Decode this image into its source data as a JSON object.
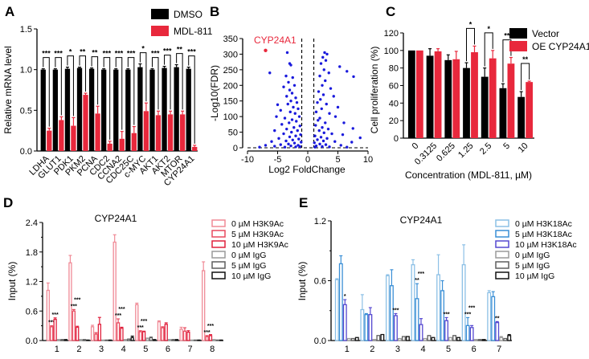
{
  "chart_data": [
    {
      "panel": "A",
      "type": "bar",
      "ylabel": "Relative mRNA level",
      "ylim": [
        0,
        1.5
      ],
      "yticks": [
        0.0,
        0.5,
        1.0,
        1.5
      ],
      "categories": [
        "LDHA",
        "GLUT1",
        "PDK1",
        "PKM2",
        "PCNA",
        "CDC2",
        "CCNA2",
        "CDC25C",
        "c-MYC",
        "AKT1",
        "AKT2",
        "MTOR",
        "CYP24A1"
      ],
      "series": [
        {
          "name": "DMSO",
          "color": "#000000",
          "values": [
            1.0,
            1.0,
            1.01,
            1.02,
            1.01,
            1.0,
            1.0,
            1.0,
            1.03,
            1.0,
            1.02,
            1.03,
            1.01
          ],
          "errors": [
            0.01,
            0.01,
            0.02,
            0.01,
            0.01,
            0.01,
            0.01,
            0.01,
            0.04,
            0.01,
            0.02,
            0.03,
            0.02
          ]
        },
        {
          "name": "MDL-811",
          "color": "#e8283c",
          "values": [
            0.25,
            0.38,
            0.31,
            0.69,
            0.46,
            0.09,
            0.15,
            0.22,
            0.49,
            0.44,
            0.45,
            0.45,
            0.05
          ],
          "errors": [
            0.03,
            0.04,
            0.1,
            0.02,
            0.09,
            0.03,
            0.09,
            0.08,
            0.1,
            0.05,
            0.04,
            0.04,
            0.02
          ]
        }
      ],
      "significance": [
        "***",
        "***",
        "*",
        "**",
        "**",
        "***",
        "***",
        "***",
        "*",
        "***",
        "***",
        "**",
        "***"
      ]
    },
    {
      "panel": "B",
      "type": "scatter",
      "xlabel": "Log2 FoldChange",
      "ylabel": "-Log10(FDR)",
      "xlim": [
        -10,
        10
      ],
      "ylim": [
        0,
        350
      ],
      "xticks": [
        -10,
        -5,
        0,
        5,
        10
      ],
      "yticks": [
        0,
        50,
        100,
        150,
        200,
        250,
        300,
        350
      ],
      "thresholds_x": [
        -1,
        1
      ],
      "color": "#1a1adc",
      "highlight": {
        "label": "CYP24A1",
        "x": -7.0,
        "y": 312,
        "color": "#e8283c"
      },
      "points": [
        [
          -6.3,
          240
        ],
        [
          -3.4,
          305
        ],
        [
          -3.0,
          270
        ],
        [
          -2.8,
          265
        ],
        [
          -3.6,
          230
        ],
        [
          -2.5,
          225
        ],
        [
          -3.2,
          210
        ],
        [
          -2.2,
          200
        ],
        [
          -4.0,
          195
        ],
        [
          -3.0,
          185
        ],
        [
          -2.6,
          175
        ],
        [
          -3.5,
          165
        ],
        [
          -2.0,
          160
        ],
        [
          -2.8,
          150
        ],
        [
          -1.8,
          145
        ],
        [
          -3.3,
          140
        ],
        [
          -5.0,
          138
        ],
        [
          -2.4,
          130
        ],
        [
          -1.6,
          125
        ],
        [
          -4.5,
          120
        ],
        [
          -2.9,
          115
        ],
        [
          -2.1,
          110
        ],
        [
          -1.4,
          100
        ],
        [
          -3.8,
          95
        ],
        [
          -5.2,
          100
        ],
        [
          -2.6,
          90
        ],
        [
          -1.9,
          85
        ],
        [
          -3.1,
          80
        ],
        [
          -4.3,
          75
        ],
        [
          -1.3,
          70
        ],
        [
          -2.3,
          65
        ],
        [
          -3.5,
          60
        ],
        [
          -5.5,
          55
        ],
        [
          -1.7,
          55
        ],
        [
          -2.7,
          50
        ],
        [
          -4.0,
          45
        ],
        [
          -1.2,
          42
        ],
        [
          -2.0,
          38
        ],
        [
          -3.0,
          35
        ],
        [
          -4.8,
          30
        ],
        [
          -1.5,
          28
        ],
        [
          -2.5,
          25
        ],
        [
          -3.6,
          22
        ],
        [
          -6.0,
          20
        ],
        [
          -1.1,
          18
        ],
        [
          -2.2,
          15
        ],
        [
          -3.2,
          12
        ],
        [
          -4.5,
          10
        ],
        [
          -7.0,
          8
        ],
        [
          -1.6,
          8
        ],
        [
          -2.8,
          6
        ],
        [
          -5.5,
          5
        ],
        [
          -1.3,
          4
        ],
        [
          -2.0,
          3
        ],
        [
          -3.8,
          2
        ],
        [
          -8.0,
          2
        ],
        [
          2.8,
          305
        ],
        [
          3.2,
          300
        ],
        [
          2.5,
          290
        ],
        [
          3.0,
          280
        ],
        [
          2.2,
          270
        ],
        [
          5.3,
          260
        ],
        [
          6.5,
          245
        ],
        [
          7.6,
          228
        ],
        [
          2.7,
          250
        ],
        [
          3.5,
          240
        ],
        [
          2.0,
          230
        ],
        [
          2.9,
          215
        ],
        [
          2.4,
          200
        ],
        [
          3.8,
          190
        ],
        [
          1.8,
          180
        ],
        [
          2.6,
          170
        ],
        [
          4.3,
          165
        ],
        [
          2.1,
          155
        ],
        [
          1.6,
          145
        ],
        [
          3.1,
          140
        ],
        [
          5.0,
          130
        ],
        [
          2.3,
          125
        ],
        [
          1.4,
          115
        ],
        [
          3.6,
          110
        ],
        [
          4.6,
          100
        ],
        [
          2.0,
          95
        ],
        [
          1.7,
          88
        ],
        [
          2.9,
          80
        ],
        [
          6.0,
          80
        ],
        [
          1.3,
          72
        ],
        [
          2.4,
          65
        ],
        [
          3.4,
          60
        ],
        [
          7.5,
          62
        ],
        [
          1.9,
          55
        ],
        [
          2.7,
          48
        ],
        [
          4.0,
          45
        ],
        [
          5.8,
          42
        ],
        [
          1.2,
          38
        ],
        [
          2.2,
          34
        ],
        [
          3.2,
          30
        ],
        [
          8.7,
          32
        ],
        [
          1.6,
          26
        ],
        [
          2.6,
          22
        ],
        [
          4.5,
          20
        ],
        [
          7.3,
          18
        ],
        [
          1.1,
          16
        ],
        [
          2.0,
          12
        ],
        [
          3.0,
          10
        ],
        [
          5.5,
          8
        ],
        [
          1.4,
          6
        ],
        [
          2.4,
          4
        ],
        [
          3.6,
          3
        ],
        [
          6.5,
          2
        ],
        [
          1.2,
          2
        ]
      ]
    },
    {
      "panel": "C",
      "type": "bar",
      "xlabel": "Concentration (MDL-811, µM)",
      "ylabel": "Cell proliferation (%)",
      "ylim": [
        0,
        120
      ],
      "yticks": [
        0,
        20,
        40,
        60,
        80,
        100,
        120
      ],
      "categories": [
        "0",
        "0.3125",
        "0.625",
        "1.25",
        "2.5",
        "5",
        "10"
      ],
      "series": [
        {
          "name": "Vector",
          "color": "#000000",
          "values": [
            100,
            94,
            89,
            80,
            70,
            57,
            47
          ],
          "errors": [
            0,
            8,
            6,
            6,
            10,
            5,
            6
          ]
        },
        {
          "name": "OE CYP24A1",
          "color": "#e8283c",
          "values": [
            100,
            99,
            90,
            98,
            91,
            85,
            64
          ],
          "errors": [
            0,
            3,
            9,
            7,
            9,
            7,
            1
          ]
        }
      ],
      "significance": [
        "",
        "",
        "",
        "*",
        "*",
        "**",
        "**"
      ]
    },
    {
      "panel": "D",
      "type": "bar",
      "title": "CYP24A1",
      "ylabel": "Input (%)",
      "ylim": [
        0,
        2.4
      ],
      "yticks": [
        0.0,
        0.6,
        1.2,
        1.8,
        2.4
      ],
      "categories": [
        "1",
        "2",
        "3",
        "4",
        "5",
        "6",
        "7",
        "8"
      ],
      "series": [
        {
          "name": "0 µM H3K9Ac",
          "color": "#f08a96",
          "values": [
            1.02,
            1.58,
            0.28,
            2.0,
            0.73,
            0.38,
            0.23,
            1.42
          ],
          "errors": [
            0.15,
            0.15,
            0.03,
            0.15,
            0.03,
            0.02,
            0.04,
            0.18
          ]
        },
        {
          "name": "5 µM H3K9Ac",
          "color": "#e84a5f",
          "values": [
            0.28,
            0.6,
            0.13,
            0.36,
            0.18,
            0.26,
            0.19,
            0.08
          ],
          "errors": [
            0.02,
            0.03,
            0.03,
            0.08,
            0.02,
            0.02,
            0.07,
            0.02
          ]
        },
        {
          "name": "10 µM H3K9Ac",
          "color": "#e0203c",
          "values": [
            0.43,
            0.27,
            0.33,
            0.25,
            0.18,
            0.33,
            0.17,
            0.1
          ],
          "errors": [
            0.03,
            0.02,
            0.14,
            0.02,
            0.01,
            0.03,
            0.03,
            0.02
          ]
        },
        {
          "name": "0 µM IgG",
          "color": "#9a9a9a",
          "values": [
            0.02,
            0.02,
            0.01,
            0.02,
            0.04,
            0.02,
            0.01,
            0.02
          ],
          "errors": [
            0,
            0,
            0,
            0,
            0.01,
            0,
            0,
            0
          ]
        },
        {
          "name": "5 µM IgG",
          "color": "#5e5e5e",
          "values": [
            0.02,
            0.02,
            0.01,
            0.03,
            0.06,
            0.02,
            0.01,
            0.01
          ],
          "errors": [
            0,
            0,
            0,
            0,
            0.01,
            0,
            0,
            0
          ]
        },
        {
          "name": "10 µM IgG",
          "color": "#111111",
          "values": [
            0.02,
            0.01,
            0.01,
            0.06,
            0.02,
            0.02,
            0.01,
            0.01
          ],
          "errors": [
            0,
            0,
            0,
            0.03,
            0,
            0,
            0,
            0
          ]
        }
      ],
      "significance": {
        "5 µM H3K9Ac": [
          "***",
          "***",
          "",
          "***",
          "***",
          "",
          "",
          "***"
        ],
        "10 µM H3K9Ac": [
          "***",
          "***",
          "",
          "***",
          "***",
          "",
          "",
          "***"
        ]
      }
    },
    {
      "panel": "E",
      "type": "bar",
      "title": "CYP24A1",
      "ylabel": "Input (%)",
      "ylim": [
        0,
        1.2
      ],
      "yticks": [
        0.0,
        0.6,
        1.2
      ],
      "categories": [
        "1",
        "2",
        "3",
        "4",
        "5",
        "6",
        "7"
      ],
      "series": [
        {
          "name": "0 µM H3K18Ac",
          "color": "#8cc0e6",
          "values": [
            0.61,
            0.31,
            0.65,
            0.76,
            0.66,
            0.76,
            0.48
          ],
          "errors": [
            0.01,
            0.15,
            0.01,
            0.05,
            0.2,
            0.2,
            0.02
          ]
        },
        {
          "name": "5 µM H3K18Ac",
          "color": "#3a8fd6",
          "values": [
            0.77,
            0.26,
            0.55,
            0.42,
            0.5,
            0.15,
            0.44
          ],
          "errors": [
            0.08,
            0.01,
            0.16,
            0.15,
            0.1,
            0.08,
            0.05
          ]
        },
        {
          "name": "10 µM H3K18Ac",
          "color": "#5548d0",
          "values": [
            0.36,
            0.26,
            0.25,
            0.16,
            0.2,
            0.13,
            0.18
          ],
          "errors": [
            0.05,
            0.07,
            0.02,
            0.06,
            0.03,
            0.02,
            0.01
          ]
        },
        {
          "name": "0 µM IgG",
          "color": "#9a9a9a",
          "values": [
            0.02,
            0.01,
            0.02,
            0.02,
            0.03,
            0.01,
            0.03
          ],
          "errors": [
            0,
            0,
            0,
            0,
            0,
            0,
            0.01
          ]
        },
        {
          "name": "5 µM IgG",
          "color": "#5e5e5e",
          "values": [
            0.02,
            0.05,
            0.04,
            0.05,
            0.05,
            0.01,
            0.02
          ],
          "errors": [
            0,
            0,
            0,
            0,
            0,
            0,
            0
          ]
        },
        {
          "name": "10 µM IgG",
          "color": "#111111",
          "values": [
            0.03,
            0.06,
            0.04,
            0.03,
            0.03,
            0.01,
            0.05
          ],
          "errors": [
            0,
            0,
            0,
            0,
            0,
            0,
            0.01
          ]
        }
      ],
      "significance": {
        "5 µM H3K18Ac": [
          "",
          "",
          "",
          "**",
          "",
          "***",
          ""
        ],
        "10 µM H3K18Ac": [
          "*",
          "",
          "***",
          "***",
          "***",
          "***",
          "**"
        ]
      }
    }
  ],
  "panel_labels": [
    "A",
    "B",
    "C",
    "D",
    "E"
  ]
}
